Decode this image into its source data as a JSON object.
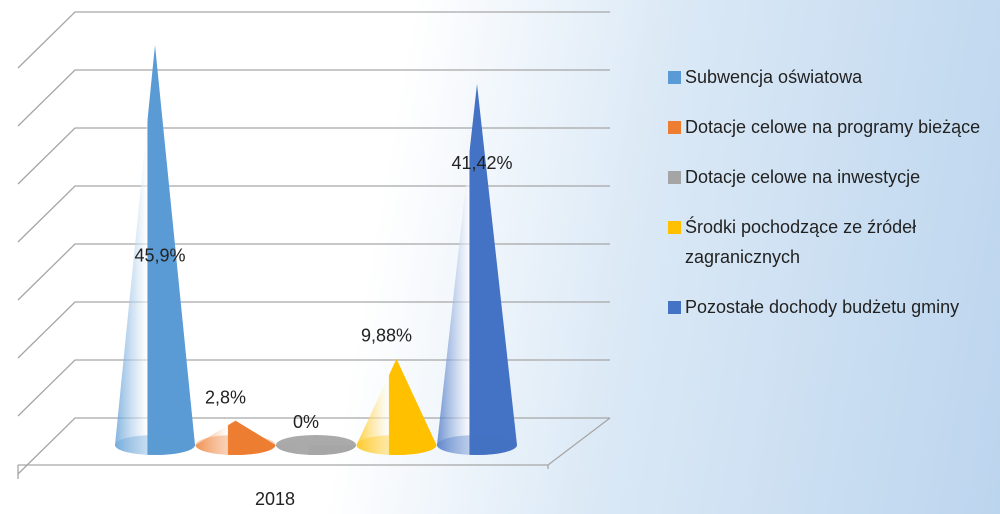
{
  "chart_data": {
    "type": "cone",
    "categories": [
      "2018"
    ],
    "series": [
      {
        "name": "Subwencja oświatowa",
        "color": "#5b9bd5",
        "values": [
          45.9
        ],
        "value_labels": [
          "45,9%"
        ]
      },
      {
        "name": "Dotacje celowe na programy bieżące",
        "color": "#ed7d31",
        "values": [
          2.8
        ],
        "value_labels": [
          "2,8%"
        ]
      },
      {
        "name": "Dotacje celowe na inwestycje",
        "color": "#a5a5a5",
        "values": [
          0
        ],
        "value_labels": [
          "0%"
        ]
      },
      {
        "name": "Środki pochodzące ze źródeł zagranicznych",
        "color": "#ffc000",
        "values": [
          9.88
        ],
        "value_labels": [
          "9,88%"
        ]
      },
      {
        "name": "Pozostałe dochody budżetu gminy",
        "color": "#4472c4",
        "values": [
          41.42
        ],
        "value_labels": [
          "41,42%"
        ]
      }
    ],
    "ylim": [
      0,
      49
    ],
    "yticks": [
      0,
      7,
      14,
      21,
      28,
      35,
      42,
      49
    ],
    "grid": true,
    "legend": "right"
  }
}
